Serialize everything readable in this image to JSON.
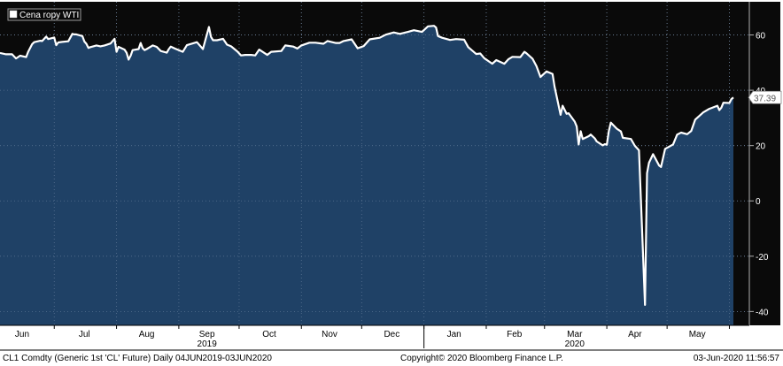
{
  "chart_data": {
    "type": "area",
    "series": [
      {
        "name": "Cena ropy WTI",
        "values": [
          [
            "2019-06-04",
            53.5
          ],
          [
            "2019-06-07",
            53.0
          ],
          [
            "2019-06-10",
            53.0
          ],
          [
            "2019-06-12",
            51.5
          ],
          [
            "2019-06-14",
            52.5
          ],
          [
            "2019-06-17",
            52.0
          ],
          [
            "2019-06-18",
            53.9
          ],
          [
            "2019-06-20",
            56.7
          ],
          [
            "2019-06-21",
            57.4
          ],
          [
            "2019-06-24",
            57.9
          ],
          [
            "2019-06-25",
            57.8
          ],
          [
            "2019-06-27",
            59.4
          ],
          [
            "2019-06-28",
            58.5
          ],
          [
            "2019-07-01",
            59.1
          ],
          [
            "2019-07-02",
            56.3
          ],
          [
            "2019-07-03",
            57.3
          ],
          [
            "2019-07-05",
            57.5
          ],
          [
            "2019-07-08",
            57.7
          ],
          [
            "2019-07-10",
            60.4
          ],
          [
            "2019-07-11",
            60.2
          ],
          [
            "2019-07-12",
            60.2
          ],
          [
            "2019-07-15",
            59.6
          ],
          [
            "2019-07-16",
            57.6
          ],
          [
            "2019-07-17",
            56.8
          ],
          [
            "2019-07-18",
            55.3
          ],
          [
            "2019-07-19",
            55.6
          ],
          [
            "2019-07-22",
            56.2
          ],
          [
            "2019-07-24",
            55.9
          ],
          [
            "2019-07-26",
            56.2
          ],
          [
            "2019-07-29",
            56.9
          ],
          [
            "2019-07-31",
            58.6
          ],
          [
            "2019-08-01",
            53.9
          ],
          [
            "2019-08-02",
            55.7
          ],
          [
            "2019-08-05",
            54.7
          ],
          [
            "2019-08-06",
            53.6
          ],
          [
            "2019-08-07",
            51.1
          ],
          [
            "2019-08-08",
            52.5
          ],
          [
            "2019-08-09",
            54.5
          ],
          [
            "2019-08-12",
            54.9
          ],
          [
            "2019-08-13",
            57.1
          ],
          [
            "2019-08-14",
            55.2
          ],
          [
            "2019-08-15",
            54.5
          ],
          [
            "2019-08-16",
            54.9
          ],
          [
            "2019-08-19",
            56.2
          ],
          [
            "2019-08-21",
            55.7
          ],
          [
            "2019-08-23",
            54.2
          ],
          [
            "2019-08-26",
            53.6
          ],
          [
            "2019-08-27",
            54.9
          ],
          [
            "2019-08-28",
            55.8
          ],
          [
            "2019-08-30",
            55.1
          ],
          [
            "2019-09-03",
            53.9
          ],
          [
            "2019-09-05",
            56.3
          ],
          [
            "2019-09-10",
            57.4
          ],
          [
            "2019-09-13",
            54.9
          ],
          [
            "2019-09-16",
            62.9
          ],
          [
            "2019-09-17",
            59.3
          ],
          [
            "2019-09-18",
            58.1
          ],
          [
            "2019-09-20",
            58.1
          ],
          [
            "2019-09-23",
            58.6
          ],
          [
            "2019-09-25",
            56.5
          ],
          [
            "2019-09-27",
            55.9
          ],
          [
            "2019-09-30",
            54.1
          ],
          [
            "2019-10-02",
            52.6
          ],
          [
            "2019-10-04",
            52.8
          ],
          [
            "2019-10-07",
            52.8
          ],
          [
            "2019-10-09",
            52.6
          ],
          [
            "2019-10-11",
            54.7
          ],
          [
            "2019-10-15",
            52.8
          ],
          [
            "2019-10-17",
            53.9
          ],
          [
            "2019-10-22",
            54.2
          ],
          [
            "2019-10-24",
            56.2
          ],
          [
            "2019-10-28",
            55.8
          ],
          [
            "2019-10-30",
            55.1
          ],
          [
            "2019-11-01",
            56.2
          ],
          [
            "2019-11-05",
            57.2
          ],
          [
            "2019-11-08",
            57.2
          ],
          [
            "2019-11-12",
            56.8
          ],
          [
            "2019-11-14",
            57.8
          ],
          [
            "2019-11-18",
            57.1
          ],
          [
            "2019-11-20",
            57.1
          ],
          [
            "2019-11-22",
            57.8
          ],
          [
            "2019-11-26",
            58.4
          ],
          [
            "2019-11-29",
            55.2
          ],
          [
            "2019-12-02",
            56.0
          ],
          [
            "2019-12-05",
            58.4
          ],
          [
            "2019-12-10",
            59.0
          ],
          [
            "2019-12-13",
            60.1
          ],
          [
            "2019-12-17",
            60.9
          ],
          [
            "2019-12-20",
            60.4
          ],
          [
            "2019-12-24",
            61.1
          ],
          [
            "2019-12-27",
            61.7
          ],
          [
            "2019-12-31",
            61.1
          ],
          [
            "2020-01-03",
            63.1
          ],
          [
            "2020-01-06",
            63.3
          ],
          [
            "2020-01-07",
            62.7
          ],
          [
            "2020-01-08",
            59.6
          ],
          [
            "2020-01-10",
            59.0
          ],
          [
            "2020-01-14",
            58.2
          ],
          [
            "2020-01-17",
            58.5
          ],
          [
            "2020-01-21",
            58.3
          ],
          [
            "2020-01-23",
            55.6
          ],
          [
            "2020-01-27",
            53.1
          ],
          [
            "2020-01-29",
            53.3
          ],
          [
            "2020-01-31",
            51.6
          ],
          [
            "2020-02-04",
            49.6
          ],
          [
            "2020-02-06",
            50.9
          ],
          [
            "2020-02-10",
            49.6
          ],
          [
            "2020-02-12",
            51.2
          ],
          [
            "2020-02-14",
            52.1
          ],
          [
            "2020-02-18",
            52.0
          ],
          [
            "2020-02-20",
            53.9
          ],
          [
            "2020-02-21",
            53.4
          ],
          [
            "2020-02-24",
            51.4
          ],
          [
            "2020-02-26",
            48.7
          ],
          [
            "2020-02-28",
            44.8
          ],
          [
            "2020-03-02",
            46.8
          ],
          [
            "2020-03-05",
            45.9
          ],
          [
            "2020-03-06",
            41.3
          ],
          [
            "2020-03-09",
            31.1
          ],
          [
            "2020-03-10",
            34.4
          ],
          [
            "2020-03-12",
            31.5
          ],
          [
            "2020-03-13",
            31.7
          ],
          [
            "2020-03-16",
            28.7
          ],
          [
            "2020-03-17",
            26.9
          ],
          [
            "2020-03-18",
            20.4
          ],
          [
            "2020-03-19",
            25.2
          ],
          [
            "2020-03-20",
            22.4
          ],
          [
            "2020-03-23",
            23.4
          ],
          [
            "2020-03-24",
            24.0
          ],
          [
            "2020-03-26",
            22.6
          ],
          [
            "2020-03-27",
            21.5
          ],
          [
            "2020-03-30",
            20.1
          ],
          [
            "2020-03-31",
            20.5
          ],
          [
            "2020-04-01",
            20.3
          ],
          [
            "2020-04-02",
            25.3
          ],
          [
            "2020-04-03",
            28.3
          ],
          [
            "2020-04-06",
            26.1
          ],
          [
            "2020-04-08",
            25.1
          ],
          [
            "2020-04-09",
            22.8
          ],
          [
            "2020-04-13",
            22.4
          ],
          [
            "2020-04-15",
            19.9
          ],
          [
            "2020-04-17",
            18.3
          ],
          [
            "2020-04-20",
            -37.6
          ],
          [
            "2020-04-21",
            10.0
          ],
          [
            "2020-04-22",
            13.8
          ],
          [
            "2020-04-24",
            16.9
          ],
          [
            "2020-04-27",
            12.8
          ],
          [
            "2020-04-28",
            12.3
          ],
          [
            "2020-04-30",
            18.8
          ],
          [
            "2020-05-04",
            20.4
          ],
          [
            "2020-05-06",
            24.0
          ],
          [
            "2020-05-08",
            24.7
          ],
          [
            "2020-05-11",
            24.1
          ],
          [
            "2020-05-13",
            25.3
          ],
          [
            "2020-05-15",
            29.4
          ],
          [
            "2020-05-19",
            32.0
          ],
          [
            "2020-05-22",
            33.3
          ],
          [
            "2020-05-26",
            34.4
          ],
          [
            "2020-05-27",
            32.8
          ],
          [
            "2020-05-28",
            33.7
          ],
          [
            "2020-05-29",
            35.5
          ],
          [
            "2020-06-01",
            35.4
          ],
          [
            "2020-06-02",
            36.8
          ],
          [
            "2020-06-03",
            37.39
          ]
        ]
      }
    ],
    "x_range": [
      "2019-06-04",
      "2020-06-03"
    ],
    "ylim": [
      -45,
      72
    ],
    "yticks": [
      -40,
      -20,
      0,
      20,
      40,
      60
    ],
    "xticks": [
      {
        "label": "Jun",
        "date": "2019-06-15"
      },
      {
        "label": "Jul",
        "date": "2019-07-16"
      },
      {
        "label": "Aug",
        "date": "2019-08-16"
      },
      {
        "label": "Sep",
        "date": "2019-09-15"
      },
      {
        "label": "Oct",
        "date": "2019-10-16"
      },
      {
        "label": "Nov",
        "date": "2019-11-15"
      },
      {
        "label": "Dec",
        "date": "2019-12-16"
      },
      {
        "label": "Jan",
        "date": "2020-01-16"
      },
      {
        "label": "Feb",
        "date": "2020-02-15"
      },
      {
        "label": "Mar",
        "date": "2020-03-16"
      },
      {
        "label": "Apr",
        "date": "2020-04-15"
      },
      {
        "label": "May",
        "date": "2020-05-16"
      }
    ],
    "month_boundaries": [
      "2019-07-01",
      "2019-08-01",
      "2019-09-01",
      "2019-10-01",
      "2019-11-01",
      "2019-12-01",
      "2020-01-01",
      "2020-02-01",
      "2020-03-01",
      "2020-04-01",
      "2020-05-01",
      "2020-06-01"
    ],
    "year_labels": [
      {
        "label": "2019",
        "date": "2019-09-15"
      },
      {
        "label": "2020",
        "date": "2020-03-16"
      }
    ],
    "year_boundary": "2020-01-01",
    "last_value_label": "37.39",
    "legend": {
      "label": "Cena ropy WTI",
      "placement": "top-left"
    },
    "grid": true,
    "colors": {
      "background": "#0a0a0a",
      "area_fill": "#1f4166",
      "line": "#ffffff",
      "grid": "#6f7c8c",
      "axis_text": "#ffffff",
      "footer_background": "#ffffff"
    }
  },
  "footer": {
    "left": "CL1 Comdty (Generic 1st 'CL' Future)  Daily 04JUN2019-03JUN2020",
    "center": "Copyright© 2020 Bloomberg Finance L.P.",
    "right": "03-Jun-2020 11:56:57"
  }
}
